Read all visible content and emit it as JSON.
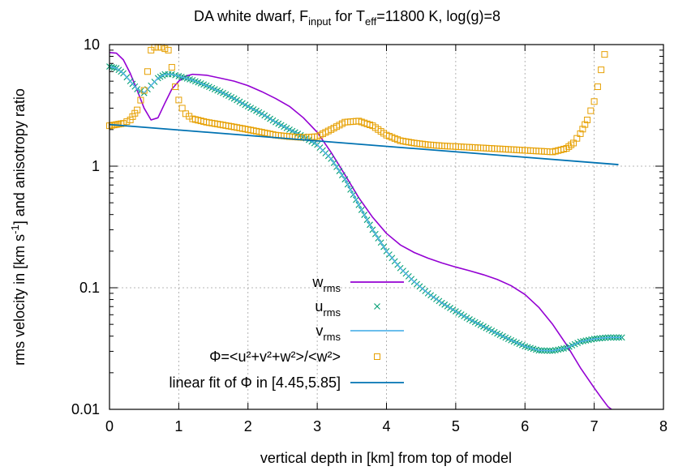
{
  "chart_data": {
    "type": "line",
    "title": "DA white dwarf, F_input for T_eff=11800 K, log(g)=8",
    "title_parts": {
      "t1": "DA white dwarf, F",
      "t1sub": "input",
      "t2": " for T",
      "t2sub": "eff",
      "t3": "=11800 K, log(g)=8"
    },
    "xlabel": "vertical depth in [km] from top of model",
    "ylabel": "rms velocity in [km s-1] and anisotropy ratio",
    "ylabel_parts": {
      "a": "rms velocity in [km s",
      "sup": "-1",
      "b": "] and anisotropy ratio"
    },
    "xlim": [
      0,
      8
    ],
    "ylim": [
      0.01,
      10
    ],
    "y_scale": "log",
    "x_ticks": [
      0,
      1,
      2,
      3,
      4,
      5,
      6,
      7,
      8
    ],
    "x_tick_labels": [
      "0",
      "1",
      "2",
      "3",
      "4",
      "5",
      "6",
      "7",
      "8"
    ],
    "y_ticks": [
      0.01,
      0.1,
      1,
      10
    ],
    "y_tick_labels": [
      "0.01",
      "0.1",
      "1",
      "10"
    ],
    "grid": true,
    "legend_position": "bottom-center",
    "series": [
      {
        "name": "w_rms",
        "label_main": "w",
        "label_sub": "rms",
        "style": "line",
        "color": "#9400d3",
        "x": [
          0,
          0.1,
          0.2,
          0.3,
          0.4,
          0.5,
          0.6,
          0.7,
          0.8,
          0.9,
          1.0,
          1.1,
          1.2,
          1.4,
          1.6,
          1.8,
          2.0,
          2.2,
          2.4,
          2.6,
          2.8,
          3.0,
          3.2,
          3.4,
          3.6,
          3.8,
          4.0,
          4.2,
          4.4,
          4.6,
          4.8,
          5.0,
          5.2,
          5.4,
          5.6,
          5.8,
          6.0,
          6.2,
          6.4,
          6.6,
          6.8,
          7.0,
          7.1,
          7.2,
          7.25
        ],
        "y": [
          8.6,
          8.5,
          7.5,
          5.8,
          4.2,
          3.0,
          2.4,
          2.5,
          3.3,
          4.3,
          5.0,
          5.5,
          5.7,
          5.6,
          5.3,
          5.0,
          4.6,
          4.1,
          3.6,
          3.1,
          2.5,
          1.9,
          1.3,
          0.85,
          0.55,
          0.38,
          0.28,
          0.225,
          0.195,
          0.175,
          0.16,
          0.148,
          0.138,
          0.128,
          0.117,
          0.104,
          0.088,
          0.069,
          0.05,
          0.034,
          0.022,
          0.015,
          0.0125,
          0.0105,
          0.01
        ]
      },
      {
        "name": "u_rms",
        "label_main": "u",
        "label_sub": "rms",
        "style": "cross",
        "color": "#009e73",
        "x": [
          0,
          0.1,
          0.2,
          0.3,
          0.4,
          0.5,
          0.6,
          0.7,
          0.8,
          0.9,
          1.0,
          1.2,
          1.4,
          1.6,
          1.8,
          2.0,
          2.2,
          2.4,
          2.6,
          2.8,
          3.0,
          3.2,
          3.4,
          3.6,
          3.8,
          4.0,
          4.2,
          4.4,
          4.6,
          4.8,
          5.0,
          5.2,
          5.4,
          5.6,
          5.8,
          6.0,
          6.2,
          6.4,
          6.6,
          6.8,
          7.0,
          7.2,
          7.4
        ],
        "y": [
          6.6,
          6.4,
          5.8,
          5.0,
          4.3,
          4.0,
          4.6,
          5.3,
          5.7,
          5.7,
          5.5,
          5.1,
          4.6,
          4.1,
          3.6,
          3.1,
          2.7,
          2.3,
          2.0,
          1.75,
          1.5,
          1.15,
          0.78,
          0.48,
          0.3,
          0.2,
          0.145,
          0.112,
          0.09,
          0.075,
          0.064,
          0.055,
          0.048,
          0.042,
          0.037,
          0.033,
          0.0305,
          0.0303,
          0.032,
          0.036,
          0.038,
          0.039,
          0.039
        ]
      },
      {
        "name": "v_rms",
        "label_main": "v",
        "label_sub": "rms",
        "style": "line",
        "color": "#56b4e9",
        "x": [
          0,
          0.1,
          0.2,
          0.3,
          0.4,
          0.5,
          0.6,
          0.7,
          0.8,
          0.9,
          1.0,
          1.2,
          1.4,
          1.6,
          1.8,
          2.0,
          2.2,
          2.4,
          2.6,
          2.8,
          3.0,
          3.2,
          3.4,
          3.6,
          3.8,
          4.0,
          4.2,
          4.4,
          4.6,
          4.8,
          5.0,
          5.2,
          5.4,
          5.6,
          5.8,
          6.0,
          6.2,
          6.4,
          6.6,
          6.8,
          7.0,
          7.2,
          7.4
        ],
        "y": [
          6.6,
          6.4,
          5.8,
          5.0,
          4.3,
          4.0,
          4.6,
          5.3,
          5.7,
          5.7,
          5.5,
          5.1,
          4.6,
          4.1,
          3.6,
          3.1,
          2.7,
          2.3,
          2.0,
          1.75,
          1.5,
          1.15,
          0.78,
          0.48,
          0.3,
          0.2,
          0.145,
          0.112,
          0.09,
          0.075,
          0.064,
          0.055,
          0.048,
          0.042,
          0.037,
          0.033,
          0.0305,
          0.0303,
          0.032,
          0.036,
          0.038,
          0.039,
          0.039
        ]
      },
      {
        "name": "Φ=<u²+v²+w²>/<w²>",
        "label_main": "Φ=<u²+v²+w²>/<w²>",
        "label_sub": "",
        "style": "square",
        "color": "#e69f00",
        "x": [
          0,
          0.1,
          0.2,
          0.3,
          0.4,
          0.5,
          0.55,
          0.6,
          0.65,
          0.75,
          0.85,
          0.9,
          0.95,
          1.0,
          1.05,
          1.1,
          1.2,
          1.4,
          1.6,
          1.8,
          2.0,
          2.2,
          2.4,
          2.6,
          2.8,
          3.0,
          3.2,
          3.4,
          3.6,
          3.8,
          4.0,
          4.2,
          4.4,
          4.6,
          4.8,
          5.0,
          5.2,
          5.4,
          5.6,
          5.8,
          6.0,
          6.2,
          6.4,
          6.6,
          6.7,
          6.8,
          6.9,
          7.0,
          7.05,
          7.1,
          7.15
        ],
        "y": [
          2.15,
          2.2,
          2.25,
          2.4,
          2.9,
          4.2,
          6.0,
          9.0,
          9.5,
          9.5,
          9.0,
          6.5,
          4.5,
          3.5,
          3.0,
          2.7,
          2.45,
          2.3,
          2.2,
          2.1,
          2.0,
          1.9,
          1.8,
          1.75,
          1.72,
          1.75,
          2.0,
          2.3,
          2.35,
          2.15,
          1.8,
          1.62,
          1.55,
          1.5,
          1.47,
          1.45,
          1.43,
          1.41,
          1.39,
          1.37,
          1.35,
          1.33,
          1.31,
          1.4,
          1.55,
          1.85,
          2.4,
          3.4,
          4.5,
          6.2,
          8.3
        ]
      },
      {
        "name": "linear fit of Φ in [4.45,5.85]",
        "label_main": "linear fit of Φ in [4.45,5.85]",
        "label_sub": "",
        "style": "line",
        "color": "#0072b2",
        "x": [
          0,
          7.35
        ],
        "y": [
          2.2,
          1.03
        ]
      }
    ]
  }
}
